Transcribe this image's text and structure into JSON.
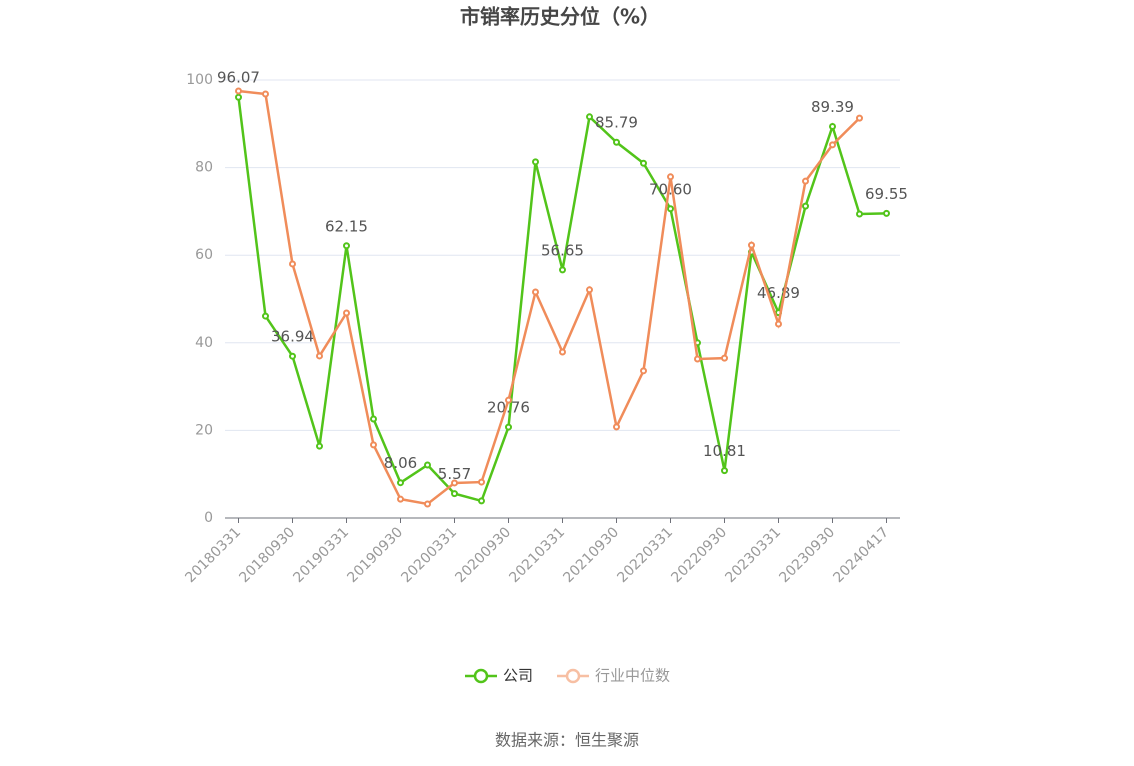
{
  "chart_data": {
    "type": "line",
    "title": "市销率历史分位（%）",
    "source": "数据来源：恒生聚源",
    "categories": [
      "20180331",
      null,
      "20180930",
      null,
      "20190331",
      null,
      "20190930",
      null,
      "20200331",
      null,
      "20200930",
      null,
      "20210331",
      null,
      "20210930",
      null,
      "20220331",
      null,
      "20220930",
      null,
      "20230331",
      null,
      "20230930",
      null,
      "20240417"
    ],
    "series": [
      {
        "name": "公司",
        "color": "#52c41a",
        "values": [
          96.07,
          46.1,
          36.94,
          16.4,
          62.15,
          22.6,
          8.06,
          12.1,
          5.57,
          3.9,
          20.76,
          81.3,
          56.65,
          91.6,
          85.79,
          81.0,
          70.6,
          40.0,
          10.81,
          60.7,
          46.89,
          71.2,
          89.39,
          69.4,
          69.55
        ],
        "value_labels": [
          "96.07",
          null,
          "36.94",
          null,
          "62.15",
          null,
          "8.06",
          null,
          "5.57",
          null,
          "20.76",
          null,
          "56.65",
          null,
          "85.79",
          null,
          "70.60",
          null,
          "10.81",
          null,
          "46.89",
          null,
          "89.39",
          null,
          "69.55"
        ]
      },
      {
        "name": "行业中位数",
        "color": "#f08c5a",
        "values": [
          97.5,
          96.8,
          58.0,
          37.0,
          46.8,
          16.7,
          4.3,
          3.2,
          8.0,
          8.2,
          26.9,
          51.6,
          37.9,
          52.1,
          20.8,
          33.6,
          77.9,
          36.3,
          36.5,
          62.3,
          44.3,
          76.9,
          85.2,
          91.3,
          null
        ]
      }
    ],
    "ylim": [
      0,
      100
    ],
    "yticks": [
      0,
      20,
      40,
      60,
      80,
      100
    ],
    "grid": true
  }
}
